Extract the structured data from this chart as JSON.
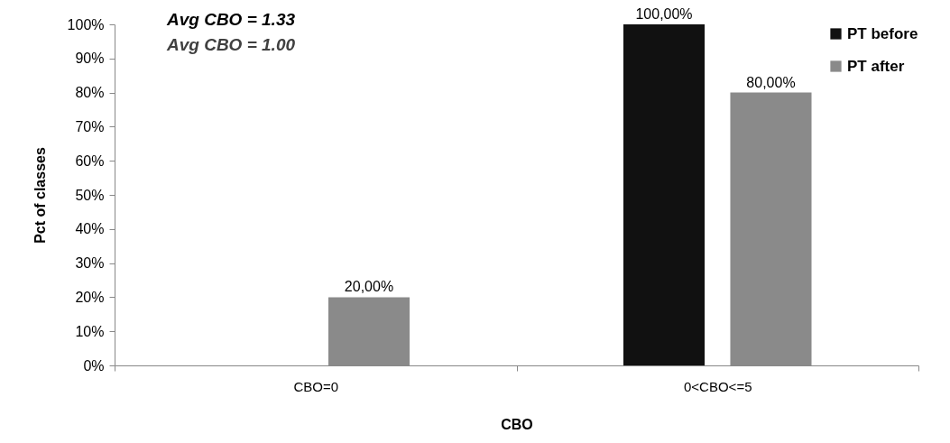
{
  "chart_data": {
    "type": "bar",
    "xlabel": "CBO",
    "ylabel": "Pct of classes",
    "categories": [
      "CBO=0",
      "0<CBO<=5"
    ],
    "series": [
      {
        "name": "PT before",
        "color": "#111111",
        "values": [
          0,
          100
        ],
        "value_labels": [
          null,
          "100,00%"
        ]
      },
      {
        "name": "PT after",
        "color": "#8a8a8a",
        "values": [
          20,
          80
        ],
        "value_labels": [
          "20,00%",
          "80,00%"
        ]
      }
    ],
    "ylim": [
      0,
      100
    ],
    "yticks": [
      {
        "value": 0,
        "label": "0%"
      },
      {
        "value": 10,
        "label": "10%"
      },
      {
        "value": 20,
        "label": "20%"
      },
      {
        "value": 30,
        "label": "30%"
      },
      {
        "value": 40,
        "label": "40%"
      },
      {
        "value": 50,
        "label": "50%"
      },
      {
        "value": 60,
        "label": "60%"
      },
      {
        "value": 70,
        "label": "70%"
      },
      {
        "value": 80,
        "label": "80%"
      },
      {
        "value": 90,
        "label": "90%"
      },
      {
        "value": 100,
        "label": "100%"
      }
    ],
    "annotations": [
      "Avg CBO = 1.33",
      "Avg CBO = 1.00"
    ],
    "legend": "top right",
    "grid": false
  }
}
